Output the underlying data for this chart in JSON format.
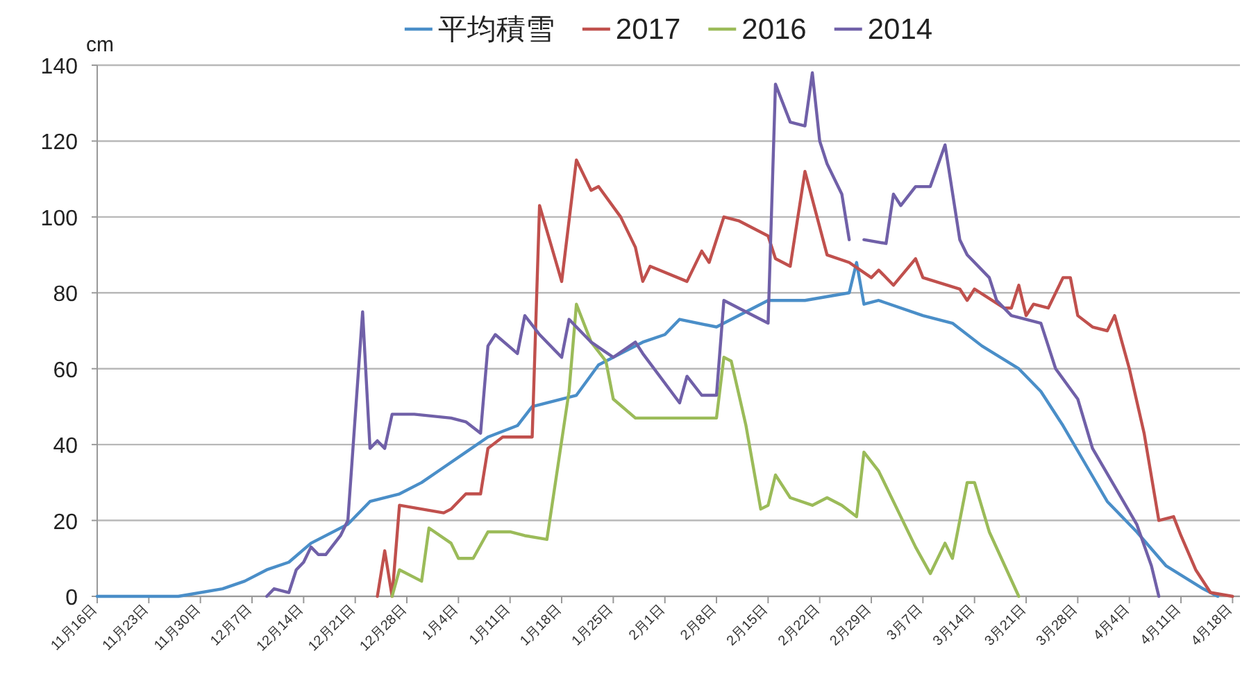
{
  "chart_data": {
    "type": "line",
    "ylabel": "cm",
    "legend": "top",
    "grid": "y",
    "ylim": [
      0,
      140
    ],
    "yticks": [
      0,
      20,
      40,
      60,
      80,
      100,
      120,
      140
    ],
    "xlim": [
      "2015-11-16",
      "2016-04-19"
    ],
    "xticks": [
      {
        "value": "2015-11-16",
        "label": "11月16日"
      },
      {
        "value": "2015-11-23",
        "label": "11月23日"
      },
      {
        "value": "2015-11-30",
        "label": "11月30日"
      },
      {
        "value": "2015-12-07",
        "label": "12月7日"
      },
      {
        "value": "2015-12-14",
        "label": "12月14日"
      },
      {
        "value": "2015-12-21",
        "label": "12月21日"
      },
      {
        "value": "2015-12-28",
        "label": "12月28日"
      },
      {
        "value": "2016-01-04",
        "label": "1月4日"
      },
      {
        "value": "2016-01-11",
        "label": "1月11日"
      },
      {
        "value": "2016-01-18",
        "label": "1月18日"
      },
      {
        "value": "2016-01-25",
        "label": "1月25日"
      },
      {
        "value": "2016-02-01",
        "label": "2月1日"
      },
      {
        "value": "2016-02-08",
        "label": "2月8日"
      },
      {
        "value": "2016-02-15",
        "label": "2月15日"
      },
      {
        "value": "2016-02-22",
        "label": "2月22日"
      },
      {
        "value": "2016-02-29",
        "label": "2月29日"
      },
      {
        "value": "2016-03-07",
        "label": "3月7日"
      },
      {
        "value": "2016-03-14",
        "label": "3月14日"
      },
      {
        "value": "2016-03-21",
        "label": "3月21日"
      },
      {
        "value": "2016-03-28",
        "label": "3月28日"
      },
      {
        "value": "2016-04-04",
        "label": "4月4日"
      },
      {
        "value": "2016-04-11",
        "label": "4月11日"
      },
      {
        "value": "2016-04-18",
        "label": "4月18日"
      }
    ],
    "series": [
      {
        "name": "平均積雪",
        "color": "#4a8ec8",
        "x": [
          "2015-11-16",
          "2015-11-27",
          "2015-12-03",
          "2015-12-06",
          "2015-12-09",
          "2015-12-12",
          "2015-12-15",
          "2015-12-20",
          "2015-12-23",
          "2015-12-27",
          "2015-12-30",
          "2016-01-02",
          "2016-01-05",
          "2016-01-08",
          "2016-01-12",
          "2016-01-14",
          "2016-01-20",
          "2016-01-23",
          "2016-01-29",
          "2016-02-01",
          "2016-02-03",
          "2016-02-08",
          "2016-02-15",
          "2016-02-20",
          "2016-02-26",
          "2016-02-27",
          "2016-02-28",
          "2016-03-01",
          "2016-03-07",
          "2016-03-11",
          "2016-03-15",
          "2016-03-20",
          "2016-03-23",
          "2016-03-26",
          "2016-03-29",
          "2016-04-01",
          "2016-04-05",
          "2016-04-09",
          "2016-04-14",
          "2016-04-16"
        ],
        "values": [
          0,
          0,
          2,
          4,
          7,
          9,
          14,
          19,
          25,
          27,
          30,
          34,
          38,
          42,
          45,
          50,
          53,
          61,
          67,
          69,
          73,
          71,
          78,
          78,
          80,
          88,
          77,
          78,
          74,
          72,
          66,
          60,
          54,
          45,
          35,
          25,
          17,
          8,
          2,
          0
        ]
      },
      {
        "name": "2017",
        "color": "#c0504d",
        "x": [
          "2015-12-24",
          "2015-12-25",
          "2015-12-26",
          "2015-12-27",
          "2016-01-02",
          "2016-01-03",
          "2016-01-05",
          "2016-01-07",
          "2016-01-08",
          "2016-01-10",
          "2016-01-14",
          "2016-01-15",
          "2016-01-18",
          "2016-01-20",
          "2016-01-22",
          "2016-01-23",
          "2016-01-26",
          "2016-01-28",
          "2016-01-29",
          "2016-01-30",
          "2016-02-04",
          "2016-02-06",
          "2016-02-07",
          "2016-02-09",
          "2016-02-11",
          "2016-02-15",
          "2016-02-16",
          "2016-02-18",
          "2016-02-20",
          "2016-02-23",
          "2016-02-26",
          "2016-02-29",
          "2016-03-01",
          "2016-03-03",
          "2016-03-06",
          "2016-03-07",
          "2016-03-12",
          "2016-03-13",
          "2016-03-14",
          "2016-03-18",
          "2016-03-19",
          "2016-03-20",
          "2016-03-21",
          "2016-03-22",
          "2016-03-24",
          "2016-03-26",
          "2016-03-27",
          "2016-03-28",
          "2016-03-30",
          "2016-04-01",
          "2016-04-02",
          "2016-04-04",
          "2016-04-06",
          "2016-04-08",
          "2016-04-10",
          "2016-04-11",
          "2016-04-13",
          "2016-04-15",
          "2016-04-18"
        ],
        "values": [
          0,
          12,
          0,
          24,
          22,
          23,
          27,
          27,
          39,
          42,
          42,
          103,
          83,
          115,
          107,
          108,
          100,
          92,
          83,
          87,
          83,
          91,
          88,
          100,
          99,
          95,
          89,
          87,
          112,
          90,
          88,
          84,
          86,
          82,
          89,
          84,
          81,
          78,
          81,
          76,
          76,
          82,
          74,
          77,
          76,
          84,
          84,
          74,
          71,
          70,
          74,
          60,
          43,
          20,
          21,
          16,
          7,
          1,
          0
        ]
      },
      {
        "name": "2016",
        "color": "#9bbb59",
        "x": [
          "2015-12-26",
          "2015-12-27",
          "2015-12-30",
          "2015-12-31",
          "2016-01-03",
          "2016-01-04",
          "2016-01-06",
          "2016-01-08",
          "2016-01-11",
          "2016-01-13",
          "2016-01-16",
          "2016-01-19",
          "2016-01-20",
          "2016-01-22",
          "2016-01-24",
          "2016-01-25",
          "2016-01-28",
          "2016-02-08",
          "2016-02-09",
          "2016-02-10",
          "2016-02-12",
          "2016-02-14",
          "2016-02-15",
          "2016-02-16",
          "2016-02-18",
          "2016-02-21",
          "2016-02-23",
          "2016-02-25",
          "2016-02-27",
          "2016-02-28",
          "2016-03-01",
          "2016-03-04",
          "2016-03-06",
          "2016-03-08",
          "2016-03-10",
          "2016-03-11",
          "2016-03-13",
          "2016-03-14",
          "2016-03-16",
          "2016-03-20"
        ],
        "values": [
          0,
          7,
          4,
          18,
          14,
          10,
          10,
          17,
          17,
          16,
          15,
          54,
          77,
          67,
          62,
          52,
          47,
          47,
          63,
          62,
          45,
          23,
          24,
          32,
          26,
          24,
          26,
          24,
          21,
          38,
          33,
          21,
          13,
          6,
          14,
          10,
          30,
          30,
          17,
          0
        ]
      },
      {
        "name": "2014",
        "color": "#7060a8",
        "x": [
          "2015-12-09",
          "2015-12-10",
          "2015-12-12",
          "2015-12-13",
          "2015-12-14",
          "2015-12-15",
          "2015-12-16",
          "2015-12-17",
          "2015-12-19",
          "2015-12-20",
          "2015-12-22",
          "2015-12-23",
          "2015-12-24",
          "2015-12-25",
          "2015-12-26",
          "2015-12-29",
          "2016-01-03",
          "2016-01-05",
          "2016-01-07",
          "2016-01-08",
          "2016-01-09",
          "2016-01-12",
          "2016-01-13",
          "2016-01-15",
          "2016-01-18",
          "2016-01-19",
          "2016-01-22",
          "2016-01-25",
          "2016-01-28",
          "2016-01-29",
          "2016-02-03",
          "2016-02-04",
          "2016-02-06",
          "2016-02-08",
          "2016-02-09",
          "2016-02-11",
          "2016-02-15",
          "2016-02-16",
          "2016-02-18",
          "2016-02-20",
          "2016-02-21",
          "2016-02-22",
          "2016-02-23",
          "2016-02-25",
          "2016-02-26",
          null,
          "2016-02-28",
          "2016-03-02",
          "2016-03-03",
          "2016-03-04",
          "2016-03-06",
          "2016-03-08",
          "2016-03-10",
          "2016-03-12",
          "2016-03-13",
          "2016-03-16",
          "2016-03-17",
          "2016-03-19",
          "2016-03-23",
          "2016-03-25",
          "2016-03-28",
          "2016-03-30",
          "2016-04-02",
          "2016-04-05",
          "2016-04-07",
          "2016-04-08"
        ],
        "values": [
          0,
          2,
          1,
          7,
          9,
          13,
          11,
          11,
          16,
          20,
          75,
          39,
          41,
          39,
          48,
          48,
          47,
          46,
          43,
          66,
          69,
          64,
          74,
          69,
          63,
          73,
          67,
          63,
          67,
          64,
          51,
          58,
          53,
          53,
          78,
          76,
          72,
          135,
          125,
          124,
          138,
          120,
          114,
          106,
          94,
          null,
          94,
          93,
          106,
          103,
          108,
          108,
          119,
          94,
          90,
          84,
          78,
          74,
          72,
          60,
          52,
          39,
          29,
          19,
          8,
          0
        ]
      }
    ]
  }
}
